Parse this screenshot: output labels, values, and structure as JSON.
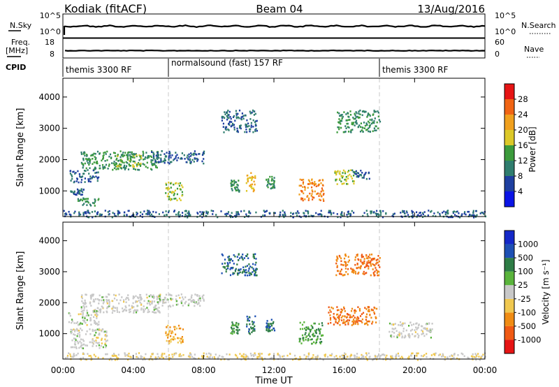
{
  "header": {
    "station": "Kodiak (fitACF)",
    "beam": "Beam 04",
    "date": "13/Aug/2016"
  },
  "nsky_panel": {
    "left_label": "N.Sky",
    "left_ticks": [
      "10^5",
      "10^0"
    ],
    "right_ticks": [
      "10^5",
      "10^0"
    ],
    "right_label": "N.Search"
  },
  "freq_panel": {
    "left_label_1": "Freq.",
    "left_label_2": "[MHz]",
    "left_ticks": [
      "18",
      "8"
    ],
    "right_ticks": [
      "60",
      "0"
    ],
    "right_label": "Nave"
  },
  "cpid": {
    "label": "CPID",
    "segments": [
      {
        "name": "themis 3300 RF",
        "start": 0.0,
        "end": 6.0
      },
      {
        "name": "normalsound (fast) 157 RF",
        "start": 6.0,
        "end": 18.0
      },
      {
        "name": "themis 3300 RF",
        "start": 18.0,
        "end": 24.0
      }
    ]
  },
  "power_panel": {
    "ylabel": "Slant Range [km]",
    "y_ticks": [
      "1000",
      "2000",
      "3000",
      "4000"
    ],
    "colorbar_label": "Power [dB]",
    "colorbar_ticks": [
      "4",
      "8",
      "12",
      "16",
      "20",
      "24",
      "28"
    ],
    "colors": [
      "#0a14e6",
      "#1e3fa0",
      "#2f7d6e",
      "#3c9b3c",
      "#dcc828",
      "#f0a01e",
      "#f06414",
      "#e61414"
    ]
  },
  "velocity_panel": {
    "ylabel": "Slant Range [km]",
    "y_ticks": [
      "1000",
      "2000",
      "3000",
      "4000"
    ],
    "colorbar_label": "Velocity [m s⁻¹]",
    "colorbar_ticks": [
      "1000",
      "500",
      "100",
      "25",
      "-25",
      "-100",
      "-500",
      "-1000"
    ],
    "colors": [
      "#1428c8",
      "#1e50b4",
      "#2e7d46",
      "#5ab43c",
      "#c8c8c8",
      "#f0c850",
      "#f08c14",
      "#f05a14",
      "#e61414"
    ]
  },
  "x_axis": {
    "label": "Time UT",
    "ticks": [
      "00:00",
      "04:00",
      "08:00",
      "12:00",
      "16:00",
      "20:00",
      "00:00"
    ]
  },
  "chart_data": [
    {
      "type": "heatmap",
      "title": "Power",
      "x_unit": "hours UT",
      "y_unit": "km",
      "xlim": [
        0,
        24
      ],
      "ylim": [
        180,
        4600
      ],
      "clim": [
        0,
        32
      ],
      "blobs": [
        {
          "t": [
            0.3,
            2.0
          ],
          "r": [
            1300,
            1700
          ],
          "v": 8
        },
        {
          "t": [
            1.0,
            5.5
          ],
          "r": [
            1700,
            2300
          ],
          "v": 12
        },
        {
          "t": [
            3.0,
            4.5
          ],
          "r": [
            1800,
            2200
          ],
          "v": 16
        },
        {
          "t": [
            5.0,
            8.0
          ],
          "r": [
            1900,
            2300
          ],
          "v": 8
        },
        {
          "t": [
            5.8,
            6.8
          ],
          "r": [
            700,
            1300
          ],
          "v": 16
        },
        {
          "t": [
            0.4,
            1.2
          ],
          "r": [
            900,
            1100
          ],
          "v": 8
        },
        {
          "t": [
            0.8,
            2.0
          ],
          "r": [
            550,
            800
          ],
          "v": 12
        },
        {
          "t": [
            9.5,
            10.0
          ],
          "r": [
            1000,
            1400
          ],
          "v": 12
        },
        {
          "t": [
            10.4,
            10.9
          ],
          "r": [
            1000,
            1600
          ],
          "v": 20
        },
        {
          "t": [
            11.5,
            12.0
          ],
          "r": [
            1100,
            1500
          ],
          "v": 12
        },
        {
          "t": [
            13.4,
            14.8
          ],
          "r": [
            700,
            1400
          ],
          "v": 24
        },
        {
          "t": [
            15.4,
            16.6
          ],
          "r": [
            1200,
            1700
          ],
          "v": 16
        },
        {
          "t": [
            16.4,
            17.4
          ],
          "r": [
            1400,
            1700
          ],
          "v": 8
        },
        {
          "t": [
            0.0,
            24.0
          ],
          "r": [
            180,
            400
          ],
          "v": 8
        },
        {
          "t": [
            9.0,
            11.0
          ],
          "r": [
            2900,
            3600
          ],
          "v": 8
        },
        {
          "t": [
            15.5,
            18.0
          ],
          "r": [
            2900,
            3600
          ],
          "v": 12
        }
      ]
    },
    {
      "type": "heatmap",
      "title": "Velocity",
      "x_unit": "hours UT",
      "y_unit": "km",
      "xlim": [
        0,
        24
      ],
      "ylim": [
        180,
        4600
      ],
      "clim": [
        -1000,
        1000
      ],
      "blobs": [
        {
          "t": [
            0.3,
            2.0
          ],
          "r": [
            1300,
            1700
          ],
          "v": 0
        },
        {
          "t": [
            1.0,
            5.5
          ],
          "r": [
            1700,
            2300
          ],
          "v": 0
        },
        {
          "t": [
            5.0,
            8.0
          ],
          "r": [
            1900,
            2300
          ],
          "v": 0
        },
        {
          "t": [
            0.4,
            2.5
          ],
          "r": [
            550,
            1200
          ],
          "v": 0
        },
        {
          "t": [
            5.8,
            6.8
          ],
          "r": [
            700,
            1300
          ],
          "v": -100
        },
        {
          "t": [
            9.5,
            10.0
          ],
          "r": [
            1000,
            1400
          ],
          "v": 100
        },
        {
          "t": [
            10.4,
            10.9
          ],
          "r": [
            1000,
            1600
          ],
          "v": 500
        },
        {
          "t": [
            11.5,
            12.0
          ],
          "r": [
            1100,
            1500
          ],
          "v": 500
        },
        {
          "t": [
            13.4,
            14.8
          ],
          "r": [
            700,
            1400
          ],
          "v": 100
        },
        {
          "t": [
            15.0,
            17.8
          ],
          "r": [
            1300,
            1900
          ],
          "v": -500
        },
        {
          "t": [
            0.0,
            24.0
          ],
          "r": [
            180,
            400
          ],
          "v": -25
        },
        {
          "t": [
            9.0,
            11.0
          ],
          "r": [
            2900,
            3600
          ],
          "v": 500
        },
        {
          "t": [
            15.5,
            18.0
          ],
          "r": [
            2900,
            3600
          ],
          "v": -500
        },
        {
          "t": [
            18.5,
            21.0
          ],
          "r": [
            900,
            1400
          ],
          "v": 0
        }
      ]
    }
  ]
}
